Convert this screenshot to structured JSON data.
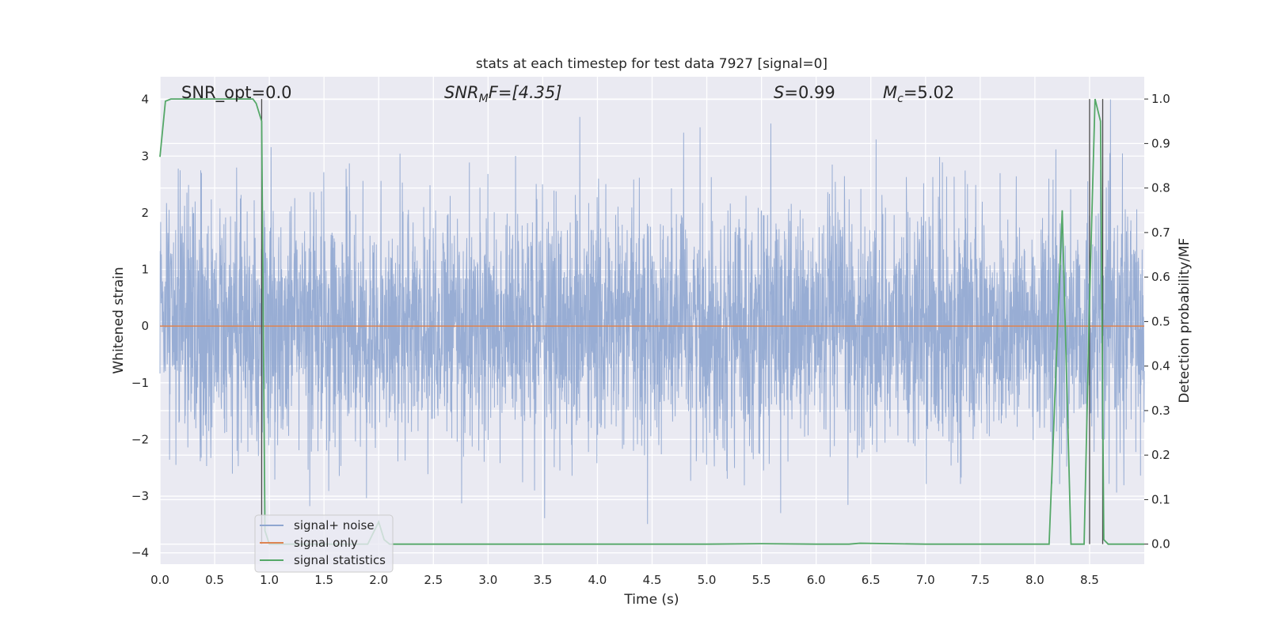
{
  "chart_data": {
    "type": "line",
    "title": "stats at each timestep for test data 7927 [signal=0]",
    "xlabel": "Time (s)",
    "ylabel_left": "Whitened strain",
    "ylabel_right": "Detection probability/MF",
    "xlim": [
      0.0,
      9.0
    ],
    "ylim_left": [
      -4.2,
      4.4
    ],
    "ylim_right": [
      -0.045,
      1.05
    ],
    "grid": true,
    "x_ticks": [
      "0.0",
      "0.5",
      "1.0",
      "1.5",
      "2.0",
      "2.5",
      "3.0",
      "3.5",
      "4.0",
      "4.5",
      "5.0",
      "5.5",
      "6.0",
      "6.5",
      "7.0",
      "7.5",
      "8.0",
      "8.5"
    ],
    "y_left_ticks": [
      "4",
      "3",
      "2",
      "1",
      "0",
      "−1",
      "−2",
      "−3",
      "−4"
    ],
    "y_right_ticks": [
      "1.0",
      "0.9",
      "0.8",
      "0.7",
      "0.6",
      "0.5",
      "0.4",
      "0.3",
      "0.2",
      "0.1",
      "0.0"
    ],
    "annotations": {
      "snr_opt": "SNR_opt=0.0",
      "snr_mf": {
        "main": "SNR",
        "sub": "M",
        "rest": "F=[4.35]"
      },
      "s_value": {
        "main": "S",
        "rest": "=0.99"
      },
      "mc_value": {
        "main": "M",
        "sub": "c",
        "rest": "=5.02"
      }
    },
    "legend": {
      "placement": "lower-left",
      "entries": [
        "signal+ noise",
        "signal only",
        "signal statistics"
      ]
    },
    "colors": {
      "noise": "#8fa6d0",
      "signal_only": "#dd8452",
      "statistics": "#55a868",
      "background": "#eaeaf2",
      "grid": "#ffffff"
    },
    "series": [
      {
        "name": "signal+ noise",
        "axis": "left",
        "description_values": "dense whitened strain noise, amplitude mostly within ±2.5, peaks up to ±4"
      },
      {
        "name": "signal only",
        "axis": "left",
        "values_constant": 0.0
      },
      {
        "name": "signal statistics",
        "axis": "right",
        "x": [
          0.0,
          0.05,
          0.1,
          0.2,
          0.5,
          0.85,
          0.88,
          0.93,
          0.96,
          1.0,
          1.05,
          1.9,
          2.0,
          2.05,
          2.1,
          3.0,
          4.0,
          5.0,
          5.5,
          6.0,
          6.3,
          6.4,
          7.0,
          8.0,
          8.13,
          8.25,
          8.33,
          8.36,
          8.45,
          8.5,
          8.55,
          8.6,
          8.63,
          8.67,
          8.75,
          9.0
        ],
        "values": [
          0.87,
          0.995,
          1.0,
          1.0,
          1.0,
          1.0,
          0.99,
          0.95,
          0.03,
          0.0,
          0.0,
          0.0,
          0.05,
          0.01,
          0.0,
          0.0,
          0.0,
          0.0,
          0.001,
          0.0,
          0.0,
          0.002,
          0.0,
          0.0,
          0.0,
          0.75,
          0.0,
          0.0,
          0.0,
          0.55,
          1.0,
          0.95,
          0.01,
          0.0,
          0.0,
          0.0
        ]
      }
    ],
    "vertical_markers_x": [
      0.93,
      8.5,
      8.62
    ]
  }
}
